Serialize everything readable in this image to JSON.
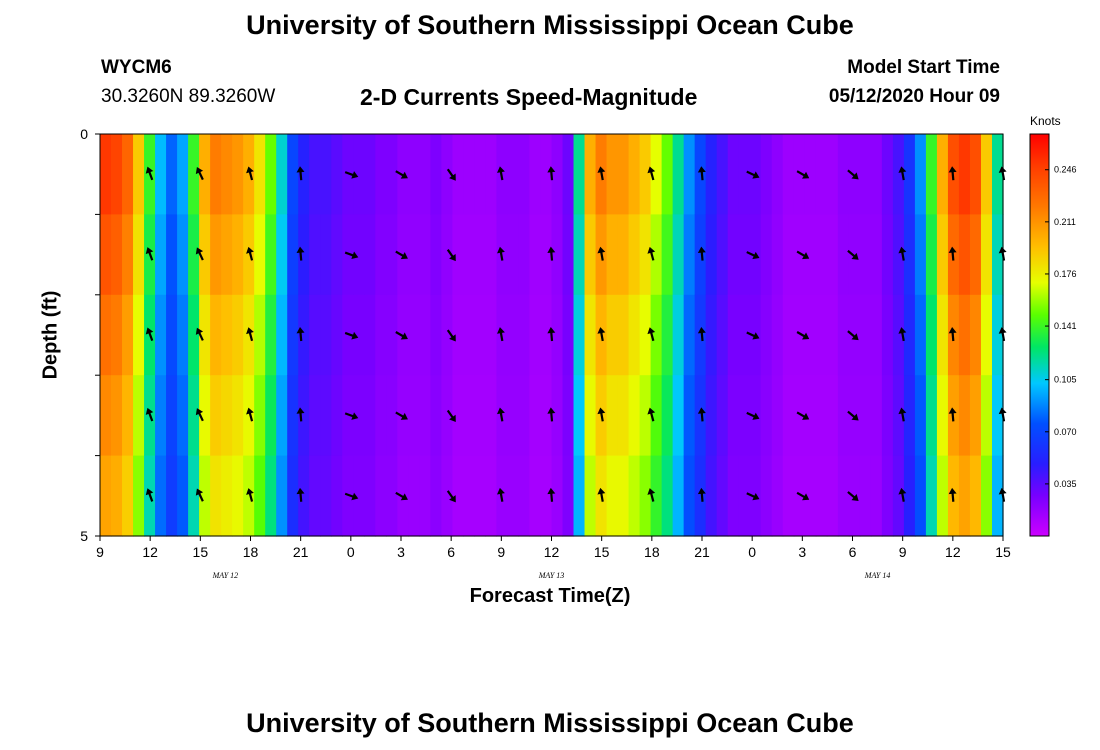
{
  "header": {
    "title": "University of Southern Mississippi Ocean Cube",
    "footer_title": "University of Southern Mississippi Ocean Cube",
    "station_id": "WYCM6",
    "station_coords": "30.3260N 89.3260W",
    "subtitle": "2-D Currents Speed-Magnitude",
    "model_start_label": "Model Start Time",
    "model_start_value": "05/12/2020 Hour 09"
  },
  "chart_data": {
    "type": "heatmap",
    "title": "2-D Currents Speed-Magnitude",
    "xlabel": "Forecast Time(Z)",
    "ylabel": "Depth (ft)",
    "x_ticks": [
      "9",
      "12",
      "15",
      "18",
      "21",
      "0",
      "3",
      "6",
      "9",
      "12",
      "15",
      "18",
      "21",
      "0",
      "3",
      "6",
      "9",
      "12",
      "15"
    ],
    "x_tick_hours": [
      0,
      3,
      6,
      9,
      12,
      15,
      18,
      21,
      24,
      27,
      30,
      33,
      36,
      39,
      42,
      45,
      48,
      51,
      54
    ],
    "x_range_hours": [
      0,
      54
    ],
    "date_labels": [
      {
        "label": "MAY 12",
        "hour": 7.5
      },
      {
        "label": "MAY 13",
        "hour": 27
      },
      {
        "label": "MAY 14",
        "hour": 46.5
      }
    ],
    "y_range": [
      0,
      5
    ],
    "y_tick_labels": [
      "0",
      "5"
    ],
    "depth_levels": [
      0,
      1,
      2,
      3,
      4,
      5
    ],
    "colorbar": {
      "units": "Knots",
      "min": 0.0,
      "max": 0.27,
      "tick_labels": [
        "0.246",
        "0.211",
        "0.176",
        "0.141",
        "0.105",
        "0.070",
        "0.035"
      ],
      "tick_values": [
        0.246,
        0.211,
        0.176,
        0.141,
        0.105,
        0.07,
        0.035
      ]
    },
    "surface_speed_by_hour": [
      0.25,
      0.245,
      0.23,
      0.19,
      0.14,
      0.1,
      0.08,
      0.095,
      0.14,
      0.2,
      0.22,
      0.215,
      0.21,
      0.2,
      0.18,
      0.15,
      0.11,
      0.07,
      0.05,
      0.04,
      0.04,
      0.035,
      0.03,
      0.03,
      0.03,
      0.025,
      0.025,
      0.02,
      0.02,
      0.02,
      0.025,
      0.02,
      0.015,
      0.015,
      0.015,
      0.015,
      0.02,
      0.02,
      0.02,
      0.015,
      0.015,
      0.02,
      0.03,
      0.12,
      0.2,
      0.22,
      0.21,
      0.21,
      0.2,
      0.19,
      0.17,
      0.15,
      0.12,
      0.09,
      0.07,
      0.05,
      0.04,
      0.03,
      0.03,
      0.03,
      0.025,
      0.02,
      0.015,
      0.015,
      0.015,
      0.015,
      0.015,
      0.02,
      0.02,
      0.02,
      0.02,
      0.03,
      0.04,
      0.06,
      0.09,
      0.14,
      0.2,
      0.24,
      0.25,
      0.24,
      0.19,
      0.12
    ],
    "depth_attenuation": [
      1.0,
      0.95,
      0.9,
      0.86,
      0.82,
      0.78
    ],
    "arrows": {
      "hours": [
        3,
        6,
        9,
        12,
        15,
        18,
        21,
        24,
        27,
        30,
        33,
        36,
        39,
        42,
        45,
        48,
        51,
        54
      ],
      "depth_rows": [
        0.5,
        1.5,
        2.5,
        3.5,
        4.5
      ],
      "directions_deg": [
        -20,
        -25,
        -15,
        -5,
        110,
        120,
        145,
        -10,
        -5,
        -10,
        -15,
        -5,
        115,
        120,
        130,
        -10,
        -5,
        -10
      ]
    }
  }
}
